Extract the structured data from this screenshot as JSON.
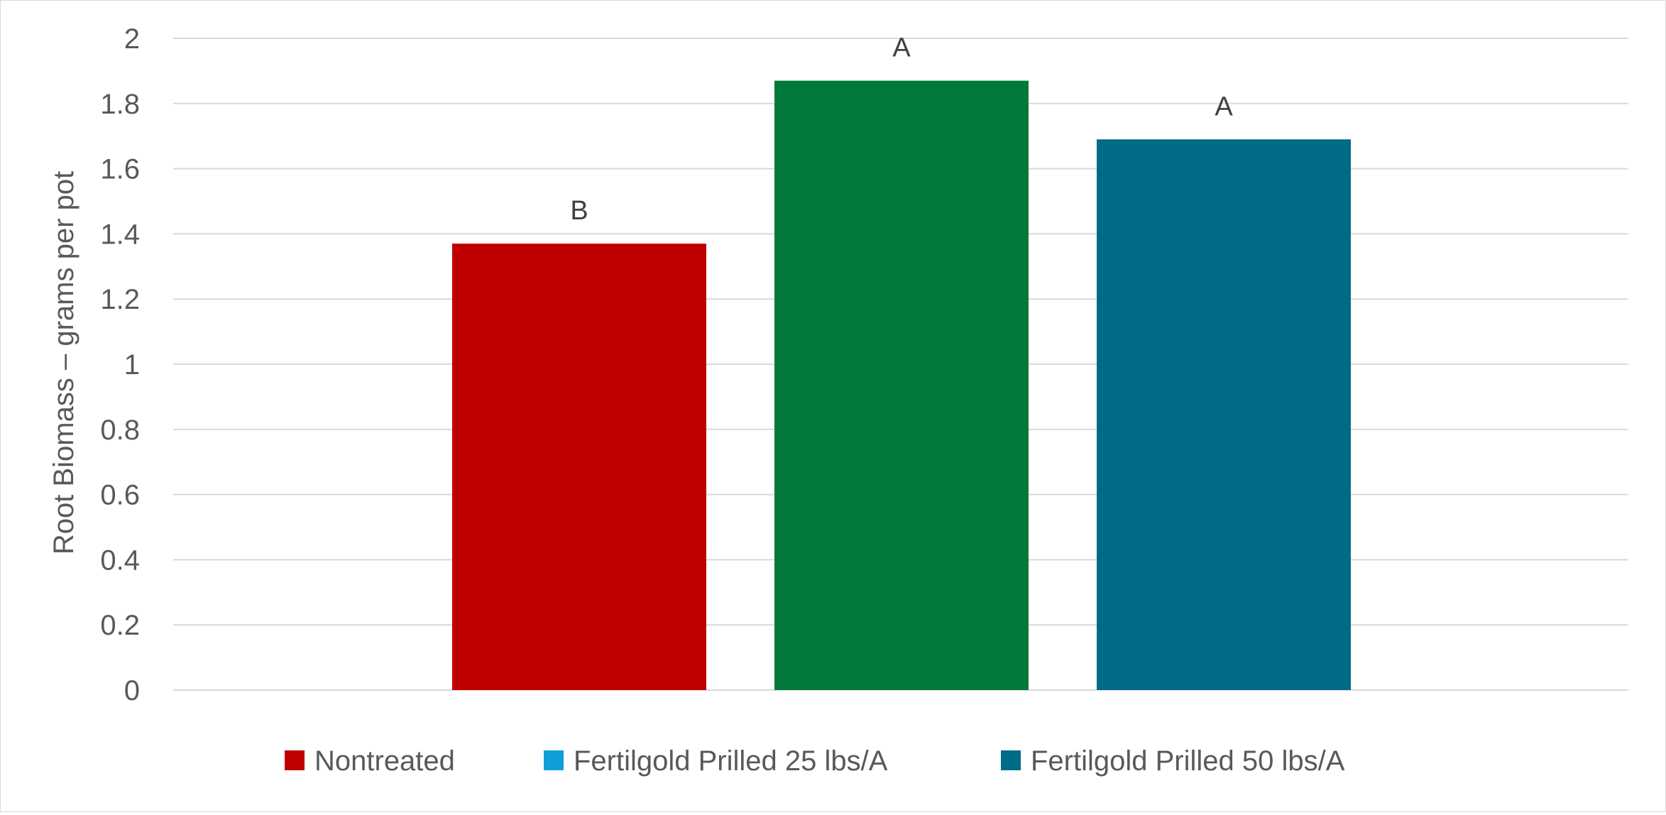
{
  "chart_data": {
    "type": "bar",
    "ylabel": "Root Biomass – grams per pot",
    "ylim": [
      0,
      2
    ],
    "y_tick_step": 0.2,
    "y_tick_labels": [
      "0",
      "0.2",
      "0.4",
      "0.6",
      "0.8",
      "1",
      "1.2",
      "1.4",
      "1.6",
      "1.8",
      "2"
    ],
    "grid": true,
    "legend_position": "bottom",
    "series": [
      {
        "name": "Nontreated",
        "value": 1.37,
        "annotation": "B",
        "color": "#c00000"
      },
      {
        "name": "Fertilgold Prilled 25 lbs/A",
        "value": 1.87,
        "annotation": "A",
        "color": "#00793a",
        "legend_color": "#0e9fdb"
      },
      {
        "name": "Fertilgold Prilled 50 lbs/A",
        "value": 1.69,
        "annotation": "A",
        "color": "#006b87"
      }
    ]
  }
}
